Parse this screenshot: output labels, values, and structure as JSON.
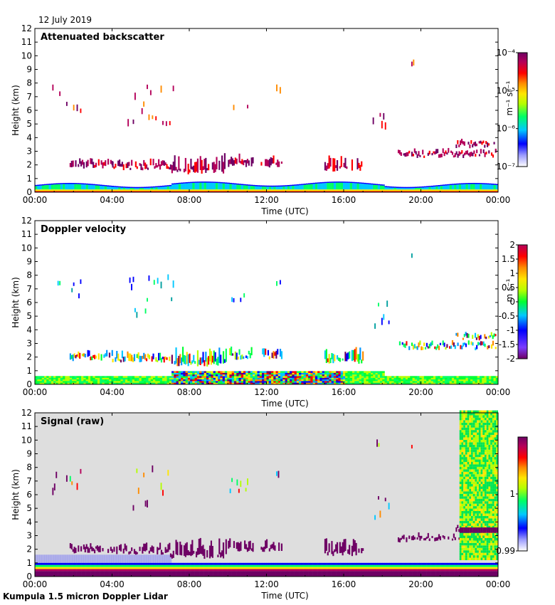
{
  "date": "12 July 2019",
  "footer": "Kumpula 1.5 micron Doppler Lidar",
  "colors": {
    "background_signal": "#dedede",
    "colormap": [
      "#ffffff",
      "#9b9bff",
      "#0000ff",
      "#00c8ff",
      "#00ff64",
      "#b4ff00",
      "#ffe600",
      "#ff8c00",
      "#ff0000",
      "#b4005a",
      "#6e0064"
    ]
  },
  "chart_data": [
    {
      "type": "heatmap",
      "title": "Attenuated backscatter",
      "xlabel": "Time (UTC)",
      "ylabel": "Height (km)",
      "x_ticks": [
        "00:00",
        "04:00",
        "08:00",
        "12:00",
        "16:00",
        "20:00",
        "00:00"
      ],
      "y_ticks": [
        "0",
        "1",
        "2",
        "3",
        "4",
        "5",
        "6",
        "7",
        "8",
        "9",
        "10",
        "11",
        "12"
      ],
      "ylim": [
        0,
        12
      ],
      "xlim_hours": [
        0,
        24
      ],
      "colorbar": {
        "label": "m⁻¹ sr⁻¹",
        "scale": "log",
        "range": [
          1e-07,
          0.0001
        ],
        "ticks": [
          "10⁻⁴",
          "10⁻⁵",
          "10⁻⁶",
          "10⁻⁷"
        ]
      },
      "features": [
        {
          "name": "boundary layer",
          "t_start": 0,
          "t_end": 24,
          "h_base": 0,
          "h_top": 0.55,
          "level": 0.5
        },
        {
          "name": "cloud layer ~2 km",
          "t_start": 1.8,
          "t_end": 12.8,
          "h_base": 1.5,
          "h_top": 2.6,
          "level": 0.85
        },
        {
          "name": "cloud layer ~2 km",
          "t_start": 15.0,
          "t_end": 17.0,
          "h_base": 1.6,
          "h_top": 2.7,
          "level": 0.85
        },
        {
          "name": "cloud layer ~2.6 km",
          "t_start": 18.7,
          "t_end": 24,
          "h_base": 2.4,
          "h_top": 2.8,
          "level": 0.9
        },
        {
          "name": "mid-level cloud ~6 km",
          "t_start": 0.9,
          "t_end": 2.4,
          "h_base": 5.8,
          "h_top": 7.6,
          "level": 0.6
        },
        {
          "name": "mid-level cloud ~5.5 km",
          "t_start": 4.8,
          "t_end": 7.2,
          "h_base": 4.8,
          "h_top": 7.8,
          "level": 0.6
        },
        {
          "name": "mid-level cloud ~6.5 km",
          "t_start": 10.0,
          "t_end": 11.0,
          "h_base": 6.0,
          "h_top": 7.0,
          "level": 0.6
        },
        {
          "name": "descending virga",
          "t_start": 17.5,
          "t_end": 18.5,
          "h_base": 4.0,
          "h_top": 5.8,
          "level": 0.75
        }
      ]
    },
    {
      "type": "heatmap",
      "title": "Doppler velocity",
      "xlabel": "Time (UTC)",
      "ylabel": "Height (km)",
      "x_ticks": [
        "00:00",
        "04:00",
        "08:00",
        "12:00",
        "16:00",
        "20:00",
        "00:00"
      ],
      "y_ticks": [
        "0",
        "1",
        "2",
        "3",
        "4",
        "5",
        "6",
        "7",
        "8",
        "9",
        "10",
        "11",
        "12"
      ],
      "ylim": [
        0,
        12
      ],
      "xlim_hours": [
        0,
        24
      ],
      "colorbar": {
        "label": "m s⁻¹",
        "scale": "linear",
        "range": [
          -2,
          2
        ],
        "ticks": [
          "2",
          "1.5",
          "1",
          "0.5",
          "0",
          "-0.5",
          "-1",
          "-1.5",
          "-2"
        ]
      }
    },
    {
      "type": "heatmap",
      "title": "Signal (raw)",
      "xlabel": "Time (UTC)",
      "ylabel": "Height (km)",
      "x_ticks": [
        "00:00",
        "04:00",
        "08:00",
        "12:00",
        "16:00",
        "20:00",
        "00:00"
      ],
      "y_ticks": [
        "0",
        "1",
        "2",
        "3",
        "4",
        "5",
        "6",
        "7",
        "8",
        "9",
        "10",
        "11",
        "12"
      ],
      "ylim": [
        0,
        12
      ],
      "xlim_hours": [
        0,
        24
      ],
      "noisy_segment_hours": [
        22.0,
        24.0
      ],
      "colorbar": {
        "label": "",
        "scale": "linear",
        "range": [
          0.99,
          1.01
        ],
        "ticks": [
          "1",
          "0.99"
        ]
      }
    }
  ]
}
